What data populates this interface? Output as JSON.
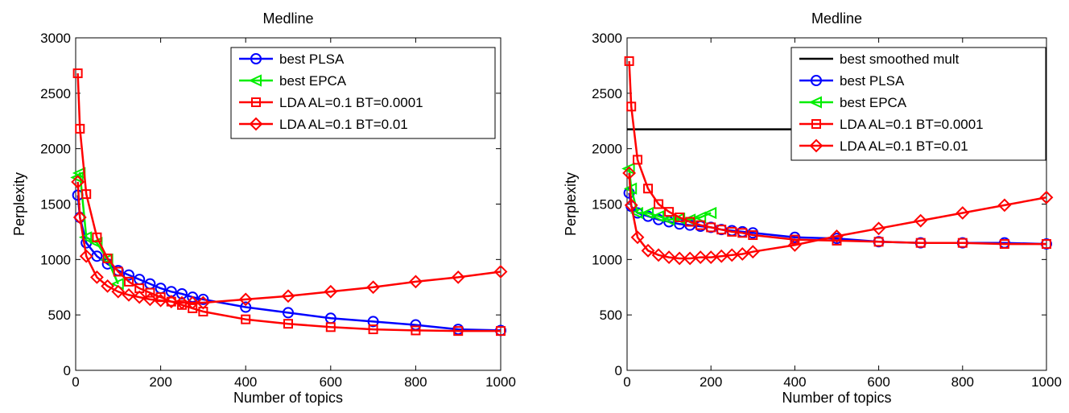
{
  "chart_data": [
    {
      "type": "line",
      "title": "Medline",
      "xlabel": "Number of topics",
      "ylabel": "Perplexity",
      "xlim": [
        0,
        1000
      ],
      "ylim": [
        0,
        3000
      ],
      "xticks": [
        0,
        200,
        400,
        600,
        800,
        1000
      ],
      "yticks": [
        0,
        500,
        1000,
        1500,
        2000,
        2500,
        3000
      ],
      "legend_position": "top-right",
      "grid": false,
      "series": [
        {
          "name": "best PLSA",
          "color": "#0000ff",
          "marker": "circle",
          "x": [
            5,
            10,
            25,
            50,
            75,
            100,
            125,
            150,
            175,
            200,
            225,
            250,
            275,
            300,
            400,
            500,
            600,
            700,
            800,
            900,
            1000
          ],
          "y": [
            1580,
            1380,
            1150,
            1030,
            960,
            900,
            860,
            820,
            780,
            740,
            710,
            690,
            660,
            640,
            570,
            520,
            470,
            440,
            410,
            370,
            360
          ]
        },
        {
          "name": "best EPCA",
          "color": "#00ee00",
          "marker": "triangle-left",
          "x": [
            5,
            10,
            25,
            50,
            75,
            100
          ],
          "y": [
            1740,
            1780,
            1200,
            1150,
            1000,
            780
          ]
        },
        {
          "name": "LDA AL=0.1 BT=0.0001",
          "color": "#ff0000",
          "marker": "square",
          "x": [
            5,
            10,
            25,
            50,
            75,
            100,
            125,
            150,
            175,
            200,
            225,
            250,
            275,
            300,
            400,
            500,
            600,
            700,
            800,
            900,
            1000
          ],
          "y": [
            2680,
            2180,
            1590,
            1200,
            1010,
            890,
            800,
            740,
            700,
            660,
            620,
            590,
            560,
            530,
            460,
            420,
            390,
            370,
            360,
            355,
            355
          ]
        },
        {
          "name": "LDA AL=0.1 BT=0.01",
          "color": "#ff0000",
          "marker": "diamond",
          "x": [
            5,
            10,
            25,
            50,
            75,
            100,
            125,
            150,
            175,
            200,
            225,
            250,
            275,
            300,
            400,
            500,
            600,
            700,
            800,
            900,
            1000
          ],
          "y": [
            1700,
            1380,
            1030,
            840,
            760,
            710,
            680,
            660,
            640,
            630,
            620,
            610,
            610,
            610,
            640,
            670,
            710,
            750,
            800,
            840,
            890
          ]
        }
      ]
    },
    {
      "type": "line",
      "title": "Medline",
      "xlabel": "Number of topics",
      "ylabel": "Perplexity",
      "xlim": [
        0,
        1000
      ],
      "ylim": [
        0,
        3000
      ],
      "xticks": [
        0,
        200,
        400,
        600,
        800,
        1000
      ],
      "yticks": [
        0,
        500,
        1000,
        1500,
        2000,
        2500,
        3000
      ],
      "legend_position": "top-right",
      "grid": false,
      "series": [
        {
          "name": "best smoothed mult",
          "color": "#000000",
          "marker": "none",
          "x": [
            0,
            1000
          ],
          "y": [
            2175,
            2175
          ]
        },
        {
          "name": "best PLSA",
          "color": "#0000ff",
          "marker": "circle",
          "x": [
            5,
            10,
            25,
            50,
            75,
            100,
            125,
            150,
            175,
            200,
            225,
            250,
            275,
            300,
            400,
            500,
            600,
            700,
            800,
            900,
            1000
          ],
          "y": [
            1600,
            1480,
            1420,
            1390,
            1360,
            1340,
            1320,
            1310,
            1300,
            1290,
            1270,
            1260,
            1250,
            1240,
            1200,
            1190,
            1160,
            1150,
            1150,
            1150,
            1140
          ]
        },
        {
          "name": "best EPCA",
          "color": "#00ee00",
          "marker": "triangle-left",
          "x": [
            5,
            10,
            25,
            50,
            75,
            100,
            125,
            150,
            175,
            200
          ],
          "y": [
            1820,
            1640,
            1420,
            1420,
            1390,
            1360,
            1370,
            1360,
            1380,
            1420
          ]
        },
        {
          "name": "LDA AL=0.1 BT=0.0001",
          "color": "#ff0000",
          "marker": "square",
          "x": [
            5,
            10,
            25,
            50,
            75,
            100,
            125,
            150,
            175,
            200,
            225,
            250,
            275,
            300,
            400,
            500,
            600,
            700,
            800,
            900,
            1000
          ],
          "y": [
            2790,
            2380,
            1900,
            1640,
            1500,
            1430,
            1380,
            1340,
            1310,
            1290,
            1270,
            1250,
            1240,
            1220,
            1180,
            1170,
            1160,
            1150,
            1150,
            1140,
            1140
          ]
        },
        {
          "name": "LDA AL=0.1 BT=0.01",
          "color": "#ff0000",
          "marker": "diamond",
          "x": [
            5,
            10,
            25,
            50,
            75,
            100,
            125,
            150,
            175,
            200,
            225,
            250,
            275,
            300,
            400,
            500,
            600,
            700,
            800,
            900,
            1000
          ],
          "y": [
            1780,
            1490,
            1200,
            1080,
            1040,
            1020,
            1010,
            1010,
            1020,
            1020,
            1030,
            1040,
            1050,
            1070,
            1130,
            1210,
            1280,
            1350,
            1420,
            1490,
            1560
          ]
        }
      ]
    }
  ]
}
